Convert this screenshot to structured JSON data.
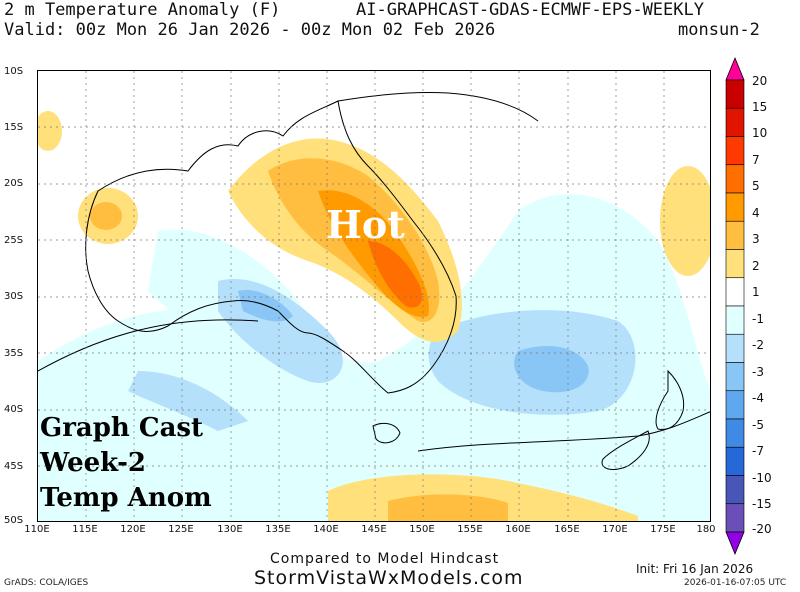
{
  "header": {
    "title_left": "2 m Temperature Anomaly (F)",
    "title_right": "AI-GRAPHCAST-GDAS-ECMWF-EPS-WEEKLY",
    "valid_line": "Valid: 00z Mon 26 Jan 2026 - 00z Mon 02 Feb 2026",
    "region": "monsun-2"
  },
  "map": {
    "lat_labels": [
      "10S",
      "15S",
      "20S",
      "25S",
      "30S",
      "35S",
      "40S",
      "45S",
      "50S"
    ],
    "lon_labels": [
      "110E",
      "115E",
      "120E",
      "125E",
      "130E",
      "135E",
      "140E",
      "145E",
      "150E",
      "155E",
      "160E",
      "165E",
      "170E",
      "175E",
      "180"
    ],
    "hot_label": "Hot",
    "overlay_lines": [
      "Graph Cast",
      "Week-2",
      "Temp Anom"
    ]
  },
  "colorbar": {
    "labels": [
      "20",
      "15",
      "10",
      "7",
      "5",
      "4",
      "3",
      "2",
      "1",
      "-1",
      "-2",
      "-3",
      "-4",
      "-5",
      "-7",
      "-10",
      "-15",
      "-20"
    ],
    "colors": [
      "#ff0098",
      "#c80000",
      "#e11400",
      "#ff3a00",
      "#ff6e00",
      "#ff9a00",
      "#ffbe40",
      "#ffe07a",
      "#ffffff",
      "#e0ffff",
      "#b4e0fb",
      "#89c5f5",
      "#5fa8ef",
      "#3f8ae5",
      "#2668d8",
      "#4a55b8",
      "#6a4fb8",
      "#9400e6"
    ]
  },
  "footer": {
    "compared": "Compared to Model Hindcast",
    "site": "StormVistaWxModels.com",
    "grads": "GrADS: COLA/IGES",
    "init": "Init: Fri 16 Jan 2026",
    "timestamp": "2026-01-16-07:05 UTC"
  }
}
